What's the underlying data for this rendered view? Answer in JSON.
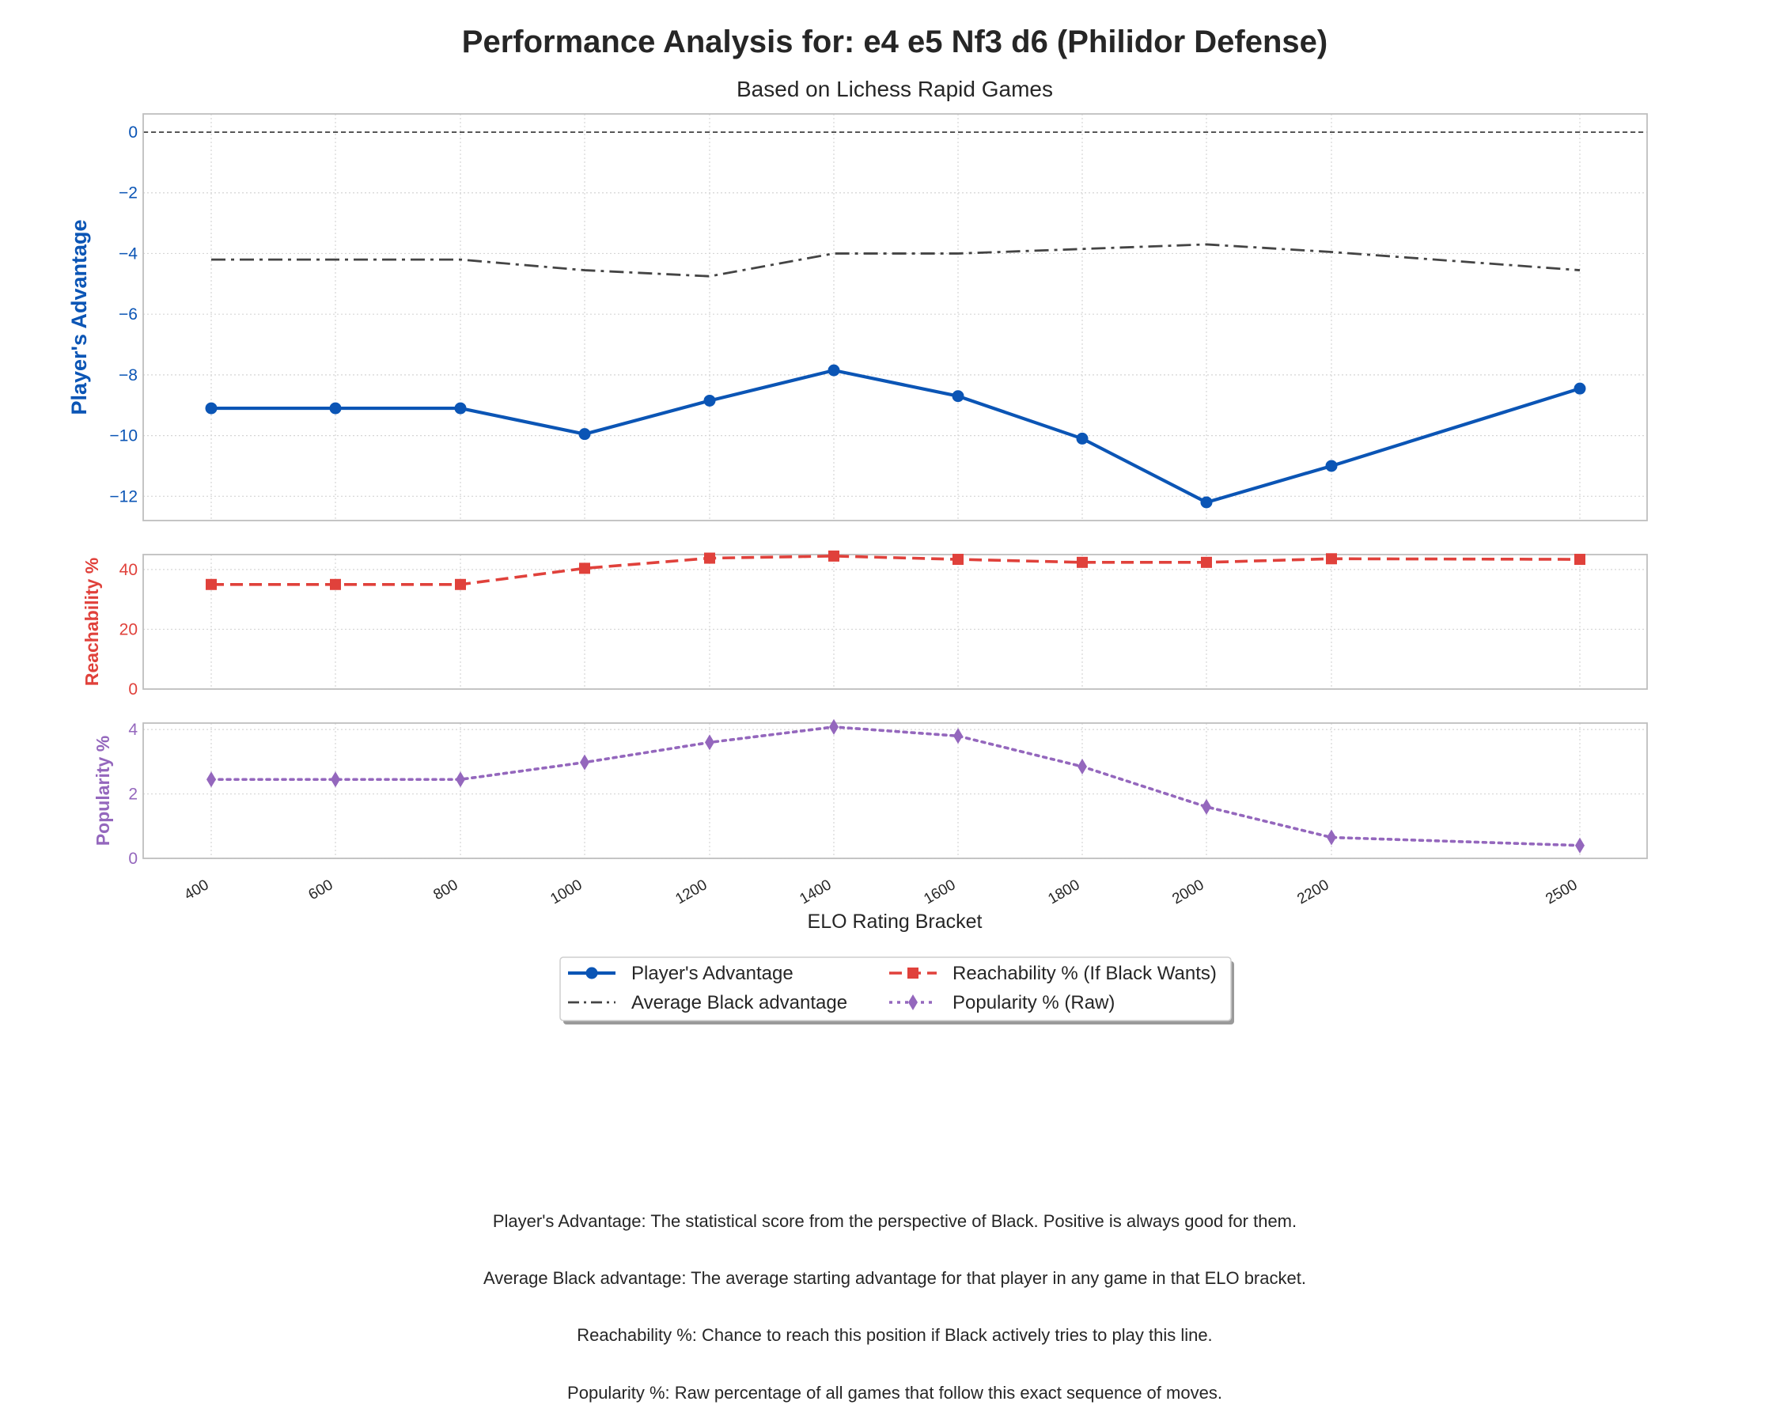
{
  "title": "Performance Analysis for: e4 e5 Nf3 d6 (Philidor Defense)",
  "subtitle": "Based on Lichess Rapid Games",
  "colors": {
    "advantage": "#0b55b5",
    "average": "#444444",
    "reachability": "#e0413b",
    "popularity": "#9467bd",
    "grid": "#d5d5d5",
    "frame": "#bfbfbf"
  },
  "chart_data": [
    {
      "type": "line",
      "panel": "top",
      "x": [
        400,
        600,
        800,
        1000,
        1200,
        1400,
        1600,
        1800,
        2000,
        2200,
        2500
      ],
      "ylabel": "Player's Advantage",
      "yticks": [
        0,
        -2,
        -4,
        -6,
        -8,
        -10,
        -12
      ],
      "ylim": [
        -12.8,
        0.6
      ],
      "reference_line": 0,
      "grid": true,
      "series": [
        {
          "name": "Player's Advantage",
          "values": [
            -9.1,
            -9.1,
            -9.1,
            -9.95,
            -8.85,
            -7.85,
            -8.7,
            -10.1,
            -12.2,
            -11.0,
            -8.45
          ],
          "linestyle": "solid",
          "marker": "circle",
          "color_key": "advantage"
        },
        {
          "name": "Average Black advantage",
          "values": [
            -4.2,
            -4.2,
            -4.2,
            -4.55,
            -4.75,
            -4.0,
            -4.0,
            -3.85,
            -3.7,
            -3.95,
            -4.55
          ],
          "linestyle": "dashdot",
          "marker": "none",
          "color_key": "average"
        }
      ]
    },
    {
      "type": "line",
      "panel": "middle",
      "x": [
        400,
        600,
        800,
        1000,
        1200,
        1400,
        1600,
        1800,
        2000,
        2200,
        2500
      ],
      "ylabel": "Reachability %",
      "yticks": [
        0,
        20,
        40
      ],
      "ylim": [
        0,
        45
      ],
      "grid": true,
      "series": [
        {
          "name": "Reachability % (If Black Wants)",
          "values": [
            35.0,
            35.0,
            35.0,
            40.4,
            43.8,
            44.5,
            43.4,
            42.4,
            42.4,
            43.6,
            43.4
          ],
          "linestyle": "dashed",
          "marker": "square",
          "color_key": "reachability"
        }
      ]
    },
    {
      "type": "line",
      "panel": "bottom",
      "x": [
        400,
        600,
        800,
        1000,
        1200,
        1400,
        1600,
        1800,
        2000,
        2200,
        2500
      ],
      "xlabel": "ELO Rating Bracket",
      "xtick_labels": [
        "400",
        "600",
        "800",
        "1000",
        "1200",
        "1400",
        "1600",
        "1800",
        "2000",
        "2200",
        "2500"
      ],
      "ylabel": "Popularity %",
      "yticks": [
        0,
        2,
        4
      ],
      "ylim": [
        0,
        4.2
      ],
      "grid": true,
      "series": [
        {
          "name": "Popularity % (Raw)",
          "values": [
            2.45,
            2.45,
            2.45,
            2.98,
            3.6,
            4.08,
            3.8,
            2.85,
            1.6,
            0.65,
            0.4
          ],
          "linestyle": "dotted",
          "marker": "diamond",
          "color_key": "popularity"
        }
      ]
    }
  ],
  "legend": {
    "placement": "below chart",
    "entries": [
      {
        "label": "Player's Advantage",
        "color_key": "advantage",
        "linestyle": "solid",
        "marker": "circle"
      },
      {
        "label": "Average Black advantage",
        "color_key": "average",
        "linestyle": "dashdot",
        "marker": "none"
      },
      {
        "label": "Reachability % (If Black Wants)",
        "color_key": "reachability",
        "linestyle": "dashed",
        "marker": "square"
      },
      {
        "label": "Popularity % (Raw)",
        "color_key": "popularity",
        "linestyle": "dotted",
        "marker": "diamond"
      }
    ]
  },
  "footnotes": [
    "Player's Advantage: The statistical score from the perspective of Black. Positive is always good for them.",
    "Average Black advantage: The average starting advantage for that player in any game in that ELO bracket.",
    "Reachability %: Chance to reach this position if Black actively tries to play this line.",
    "Popularity %: Raw percentage of all games that follow this exact sequence of moves."
  ]
}
